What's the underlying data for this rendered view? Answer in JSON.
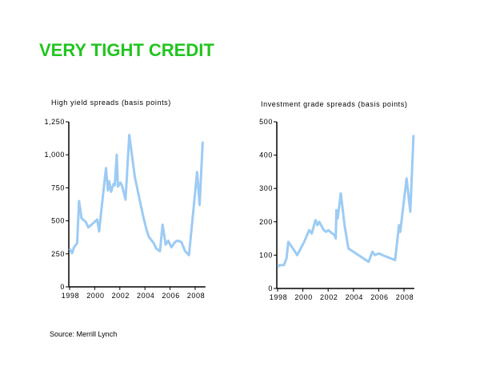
{
  "title": "VERY TIGHT CREDIT",
  "source": "Source:  Merrill Lynch",
  "line_color": "#9ccbf4",
  "chart_data": [
    {
      "type": "line",
      "title": "High yield spreads (basis points)",
      "xlabel": "",
      "ylabel": "",
      "xlim": [
        1998,
        2008.75
      ],
      "ylim": [
        0,
        1250
      ],
      "xticks": [
        1998,
        2000,
        2002,
        2004,
        2006,
        2008
      ],
      "xtick_labels": [
        "1998",
        "2000",
        "2002",
        "2004",
        "2006",
        "2008"
      ],
      "yticks": [
        0,
        250,
        500,
        750,
        1000,
        1250
      ],
      "ytick_labels": [
        "0",
        "250",
        "500",
        "750",
        "1,000",
        "1,250"
      ],
      "grid": false,
      "series": [
        {
          "name": "High yield spreads",
          "points": [
            [
              1998,
              290
            ],
            [
              1998.2,
              255
            ],
            [
              1998.35,
              300
            ],
            [
              1998.6,
              330
            ],
            [
              1998.75,
              650
            ],
            [
              1998.95,
              520
            ],
            [
              1999.3,
              490
            ],
            [
              1999.5,
              450
            ],
            [
              2000.2,
              510
            ],
            [
              2000.35,
              420
            ],
            [
              2000.5,
              560
            ],
            [
              2000.9,
              900
            ],
            [
              2001.05,
              730
            ],
            [
              2001.15,
              800
            ],
            [
              2001.3,
              720
            ],
            [
              2001.5,
              780
            ],
            [
              2001.6,
              770
            ],
            [
              2001.75,
              1000
            ],
            [
              2001.85,
              760
            ],
            [
              2002.05,
              790
            ],
            [
              2002.2,
              760
            ],
            [
              2002.45,
              660
            ],
            [
              2002.75,
              1150
            ],
            [
              2003.2,
              830
            ],
            [
              2003.6,
              650
            ],
            [
              2003.85,
              540
            ],
            [
              2004.1,
              440
            ],
            [
              2004.3,
              380
            ],
            [
              2004.7,
              330
            ],
            [
              2004.9,
              290
            ],
            [
              2005.2,
              270
            ],
            [
              2005.4,
              470
            ],
            [
              2005.65,
              320
            ],
            [
              2005.85,
              350
            ],
            [
              2006.1,
              300
            ],
            [
              2006.4,
              340
            ],
            [
              2006.6,
              350
            ],
            [
              2006.9,
              340
            ],
            [
              2007.2,
              270
            ],
            [
              2007.5,
              240
            ],
            [
              2007.75,
              480
            ],
            [
              2008.15,
              870
            ],
            [
              2008.35,
              620
            ],
            [
              2008.6,
              1100
            ]
          ]
        }
      ]
    },
    {
      "type": "line",
      "title": "Investment grade spreads (basis points)",
      "xlabel": "",
      "ylabel": "",
      "xlim": [
        1998,
        2008.75
      ],
      "ylim": [
        0,
        500
      ],
      "xticks": [
        1998,
        2000,
        2002,
        2004,
        2006,
        2008
      ],
      "xtick_labels": [
        "1998",
        "2000",
        "2002",
        "2004",
        "2006",
        "2008"
      ],
      "yticks": [
        0,
        100,
        200,
        300,
        400,
        500
      ],
      "ytick_labels": [
        "0",
        "100",
        "200",
        "300",
        "400",
        "500"
      ],
      "grid": false,
      "series": [
        {
          "name": "Investment grade spreads",
          "points": [
            [
              1998,
              65
            ],
            [
              1998.15,
              70
            ],
            [
              1998.5,
              70
            ],
            [
              1998.7,
              90
            ],
            [
              1998.85,
              140
            ],
            [
              1999.3,
              115
            ],
            [
              1999.55,
              100
            ],
            [
              2000.1,
              140
            ],
            [
              2000.5,
              175
            ],
            [
              2000.7,
              165
            ],
            [
              2001.0,
              205
            ],
            [
              2001.15,
              190
            ],
            [
              2001.3,
              200
            ],
            [
              2001.65,
              175
            ],
            [
              2001.85,
              170
            ],
            [
              2002.0,
              175
            ],
            [
              2002.5,
              160
            ],
            [
              2002.6,
              150
            ],
            [
              2002.65,
              235
            ],
            [
              2002.75,
              210
            ],
            [
              2003.0,
              285
            ],
            [
              2003.3,
              190
            ],
            [
              2003.6,
              120
            ],
            [
              2005.2,
              80
            ],
            [
              2005.5,
              110
            ],
            [
              2005.7,
              100
            ],
            [
              2006.0,
              105
            ],
            [
              2006.3,
              100
            ],
            [
              2007.3,
              85
            ],
            [
              2007.6,
              190
            ],
            [
              2007.7,
              170
            ],
            [
              2008.2,
              330
            ],
            [
              2008.5,
              230
            ],
            [
              2008.75,
              460
            ]
          ]
        }
      ]
    }
  ]
}
